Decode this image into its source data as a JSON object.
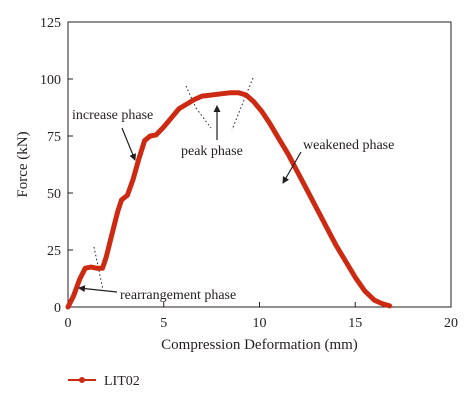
{
  "chart_data": {
    "type": "line",
    "xlabel": "Compression Deformation (mm)",
    "ylabel": "Force (kN)",
    "xlim": [
      0,
      20
    ],
    "ylim": [
      0,
      125
    ],
    "xticks": [
      0,
      5,
      10,
      15,
      20
    ],
    "yticks": [
      0,
      25,
      50,
      75,
      100,
      125
    ],
    "grid": false,
    "legend_position": "bottom-left",
    "series": [
      {
        "name": "LIT02",
        "color": "#cc2a12",
        "x": [
          0,
          0.3,
          0.6,
          0.9,
          1.2,
          1.5,
          1.8,
          2.0,
          2.3,
          2.6,
          2.8,
          3.1,
          3.4,
          3.7,
          4.0,
          4.3,
          4.6,
          5.0,
          5.4,
          5.8,
          6.2,
          6.6,
          7.0,
          7.5,
          8.0,
          8.5,
          8.9,
          9.3,
          9.7,
          10.1,
          10.5,
          11.0,
          11.5,
          12.0,
          12.5,
          13.0,
          13.5,
          14.0,
          14.5,
          15.0,
          15.5,
          16.0,
          16.4,
          16.8
        ],
        "y": [
          0,
          5,
          12,
          17,
          17.5,
          17,
          17,
          22,
          32,
          42,
          47,
          49,
          56,
          65,
          73,
          75,
          75.5,
          79,
          83,
          87,
          89,
          91,
          92.5,
          93,
          93.5,
          94,
          94,
          93,
          90,
          86,
          81,
          74,
          67,
          59,
          51,
          43,
          35,
          27,
          20,
          13,
          7,
          3,
          1.5,
          0.5
        ]
      }
    ],
    "annotations": [
      {
        "text": "increase phase",
        "x": 2.3,
        "y": 81
      },
      {
        "text": "peak phase",
        "x": 7.8,
        "y": 77
      },
      {
        "text": "weakened phase",
        "x": 14.8,
        "y": 70
      },
      {
        "text": "rearrangement phase",
        "x": 4.8,
        "y": 5.5
      }
    ]
  },
  "legend": {
    "label": "LIT02",
    "color": "#cc2a12"
  }
}
